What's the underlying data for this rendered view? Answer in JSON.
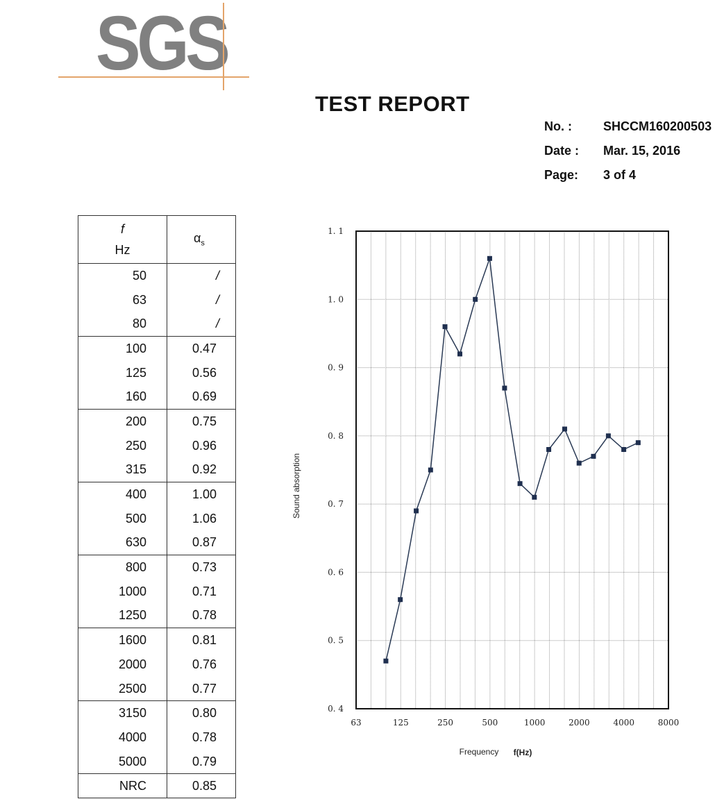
{
  "logo": {
    "text": "SGS"
  },
  "report": {
    "title": "TEST REPORT",
    "no_label": "No.  :",
    "no_value": "SHCCM160200503",
    "date_label": "Date :",
    "date_value": "Mar. 15, 2016",
    "page_label": "Page:",
    "page_value": "3 of  4"
  },
  "table": {
    "header_f_top": "f",
    "header_f_bottom": "Hz",
    "header_a": "α",
    "header_a_sub": "s",
    "groups": [
      [
        {
          "f": "50",
          "a": "/"
        },
        {
          "f": "63",
          "a": "/"
        },
        {
          "f": "80",
          "a": "/"
        }
      ],
      [
        {
          "f": "100",
          "a": "0.47"
        },
        {
          "f": "125",
          "a": "0.56"
        },
        {
          "f": "160",
          "a": "0.69"
        }
      ],
      [
        {
          "f": "200",
          "a": "0.75"
        },
        {
          "f": "250",
          "a": "0.96"
        },
        {
          "f": "315",
          "a": "0.92"
        }
      ],
      [
        {
          "f": "400",
          "a": "1.00"
        },
        {
          "f": "500",
          "a": "1.06"
        },
        {
          "f": "630",
          "a": "0.87"
        }
      ],
      [
        {
          "f": "800",
          "a": "0.73"
        },
        {
          "f": "1000",
          "a": "0.71"
        },
        {
          "f": "1250",
          "a": "0.78"
        }
      ],
      [
        {
          "f": "1600",
          "a": "0.81"
        },
        {
          "f": "2000",
          "a": "0.76"
        },
        {
          "f": "2500",
          "a": "0.77"
        }
      ],
      [
        {
          "f": "3150",
          "a": "0.80"
        },
        {
          "f": "4000",
          "a": "0.78"
        },
        {
          "f": "5000",
          "a": "0.79"
        }
      ]
    ],
    "nrc_label": "NRC",
    "nrc_value": "0.85"
  },
  "chart_data": {
    "type": "line",
    "title": "",
    "xlabel": "Frequency",
    "xlabel_unit": "f(Hz)",
    "ylabel": "Sound absorption",
    "x_scale": "log (1/3-octave bands)",
    "x_ticks": [
      "63",
      "125",
      "250",
      "500",
      "1000",
      "2000",
      "4000",
      "8000"
    ],
    "y_ticks": [
      "1. 1",
      "1. 0",
      "0. 9",
      "0. 8",
      "0. 7",
      "0. 6",
      "0. 5",
      "0. 4"
    ],
    "ylim": [
      0.4,
      1.1
    ],
    "grid": true,
    "series": [
      {
        "x": [
          100,
          125,
          160,
          200,
          250,
          315,
          400,
          500,
          630,
          800,
          1000,
          1250,
          1600,
          2000,
          2500,
          3150,
          4000,
          5000
        ],
        "values": [
          0.47,
          0.56,
          0.69,
          0.75,
          0.96,
          0.92,
          1.0,
          1.06,
          0.87,
          0.73,
          0.71,
          0.78,
          0.81,
          0.76,
          0.77,
          0.8,
          0.78,
          0.79
        ],
        "color": "#1f2f4f"
      }
    ]
  }
}
